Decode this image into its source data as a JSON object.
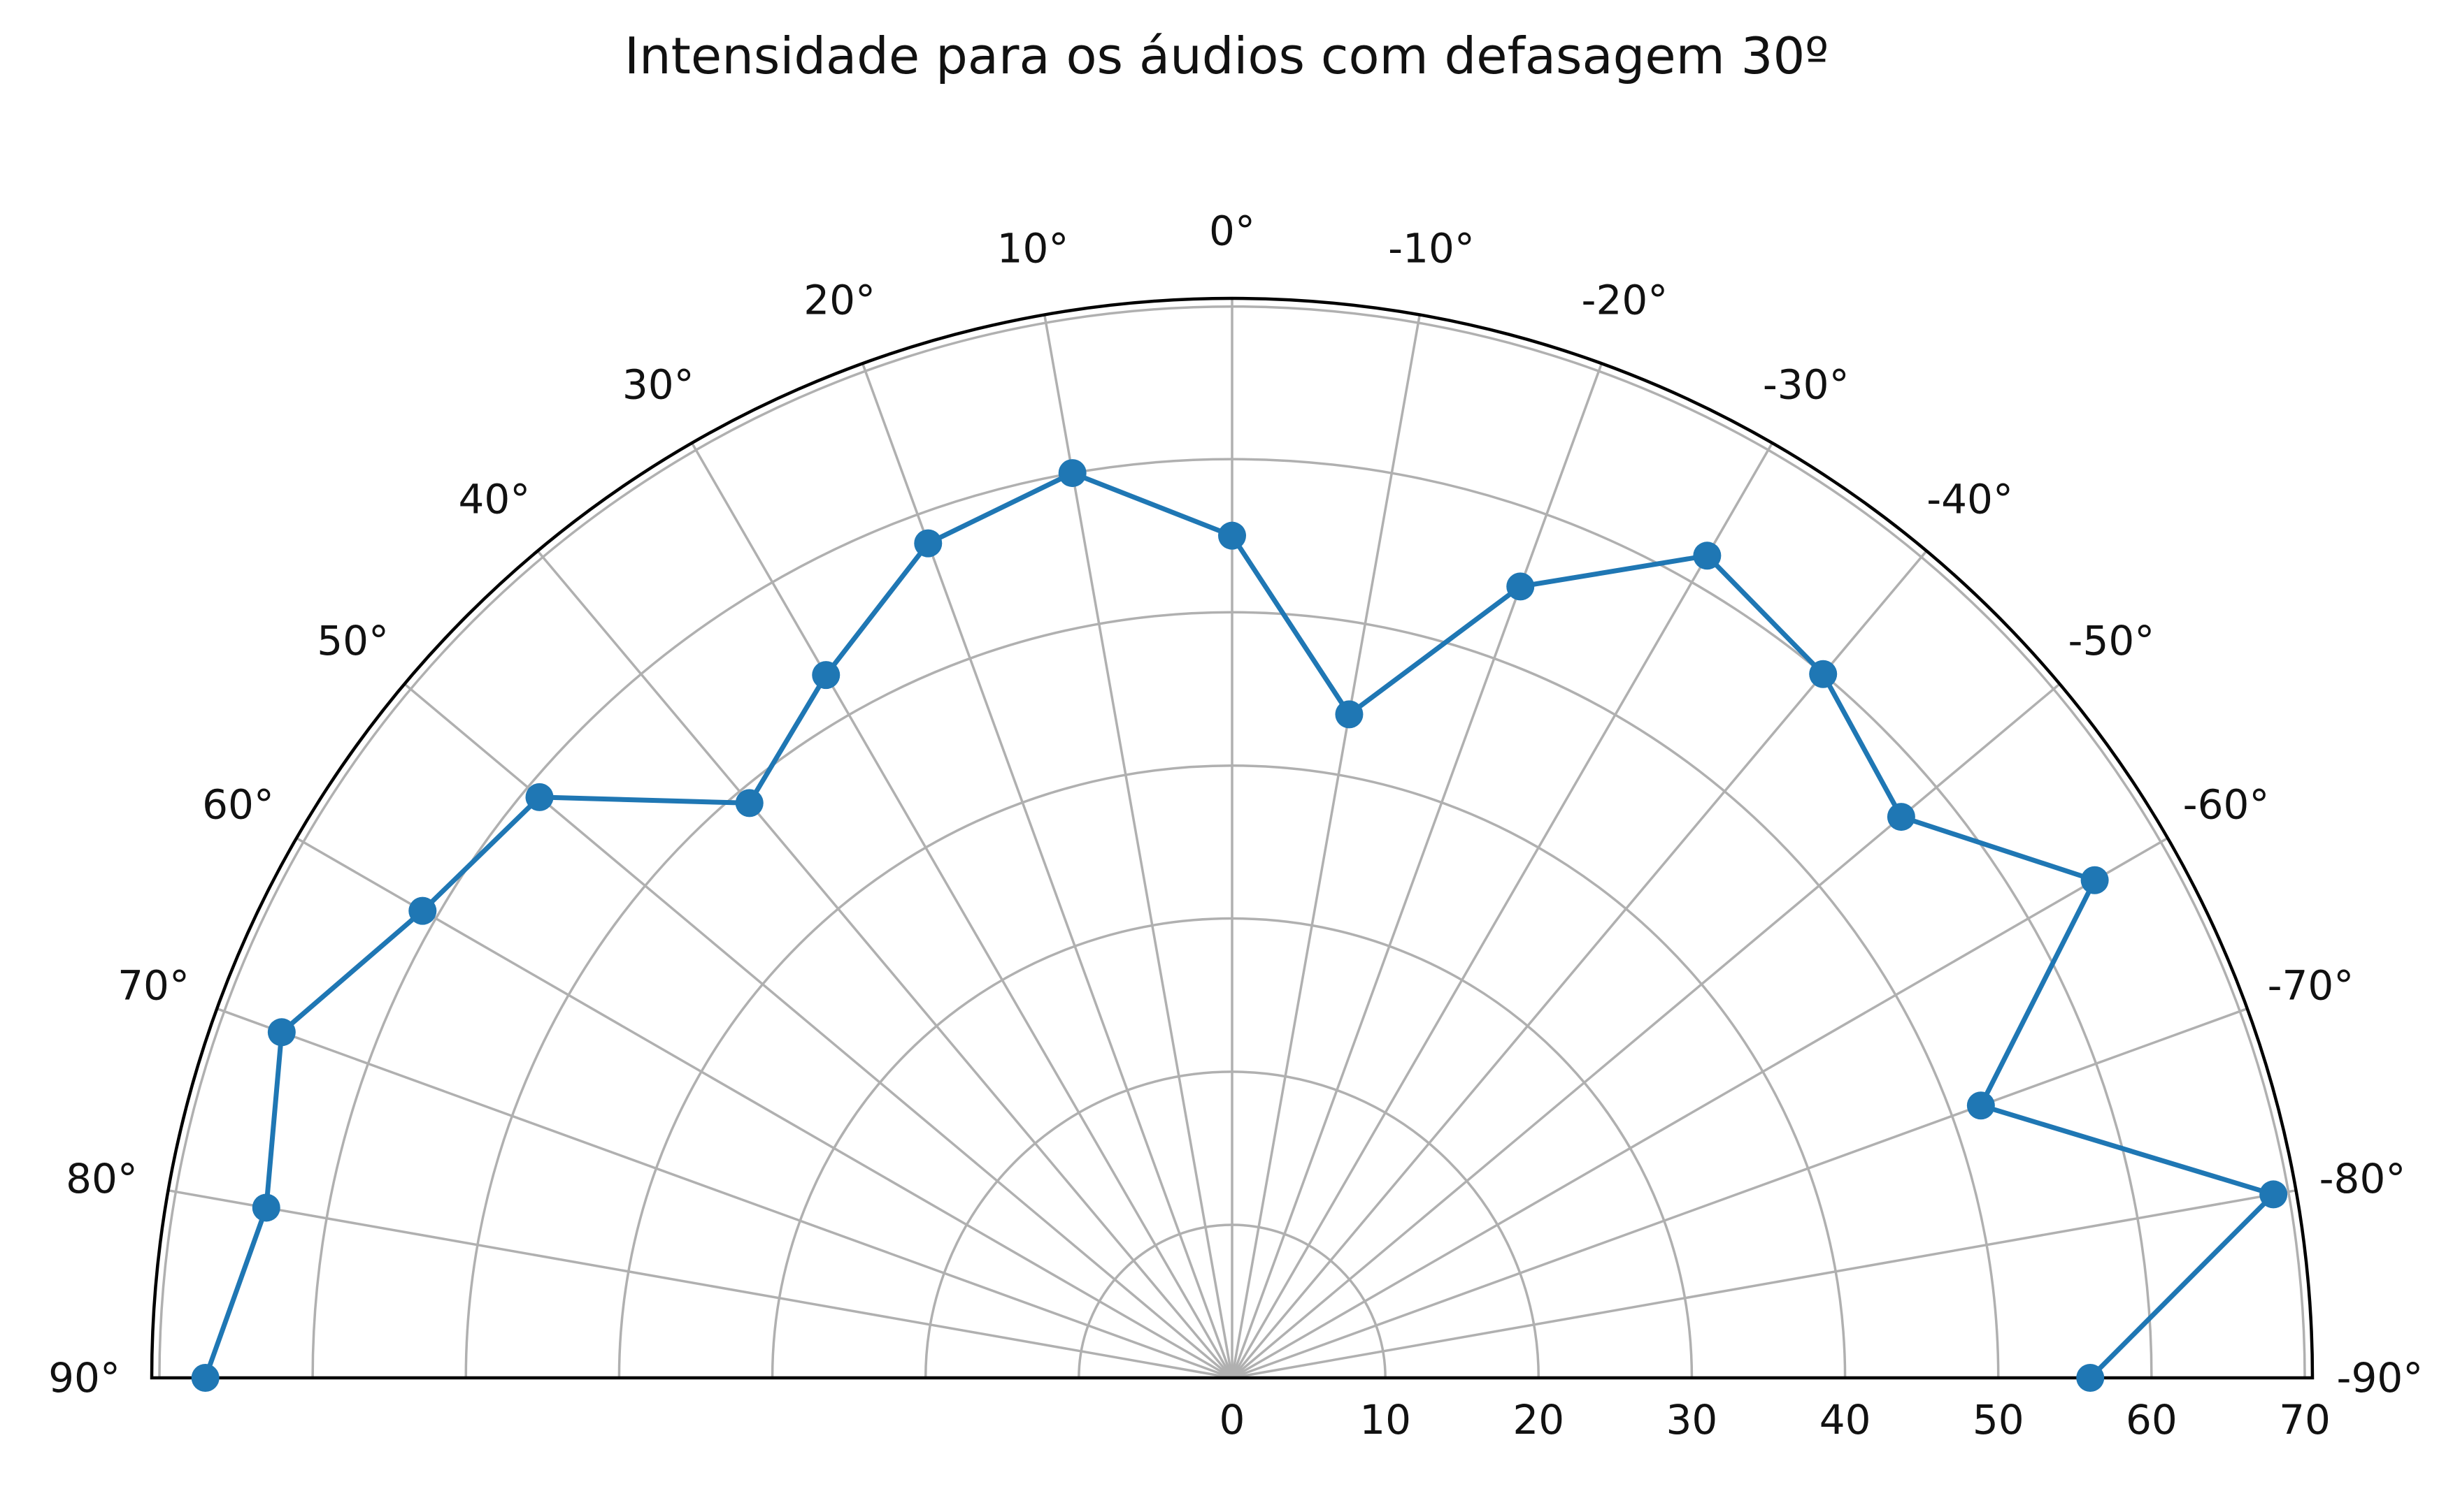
{
  "chart_data": {
    "type": "line",
    "projection": "polar",
    "title": "Intensidade para os áudios com defasagem 30º",
    "theta_range_deg": [
      -90,
      90
    ],
    "theta_zero": "top",
    "r_range": [
      0,
      70.5
    ],
    "r_ticks": [
      0,
      10,
      20,
      30,
      40,
      50,
      60,
      70
    ],
    "theta_ticks": [
      90,
      80,
      70,
      60,
      50,
      40,
      30,
      20,
      10,
      0,
      -10,
      -20,
      -30,
      -40,
      -50,
      -60,
      -70,
      -80,
      -90
    ],
    "theta_tick_labels": [
      "90°",
      "80°",
      "70°",
      "60°",
      "50°",
      "40°",
      "30°",
      "20°",
      "10°",
      "0°",
      "-10°",
      "-20°",
      "-30°",
      "-40°",
      "-50°",
      "-60°",
      "-70°",
      "-80°",
      "-90°"
    ],
    "grid": true,
    "series": [
      {
        "color": "#1f77b4",
        "marker": "circle",
        "theta": [
          90,
          80,
          70,
          60,
          50,
          40,
          30,
          20,
          10,
          0,
          -10,
          -20,
          -30,
          -40,
          -50,
          -60,
          -70,
          -80,
          -90
        ],
        "r": [
          67,
          64,
          66,
          61,
          59,
          49,
          53,
          58,
          60,
          55,
          44,
          55,
          62,
          60,
          57,
          65,
          52,
          69,
          56
        ]
      }
    ]
  }
}
